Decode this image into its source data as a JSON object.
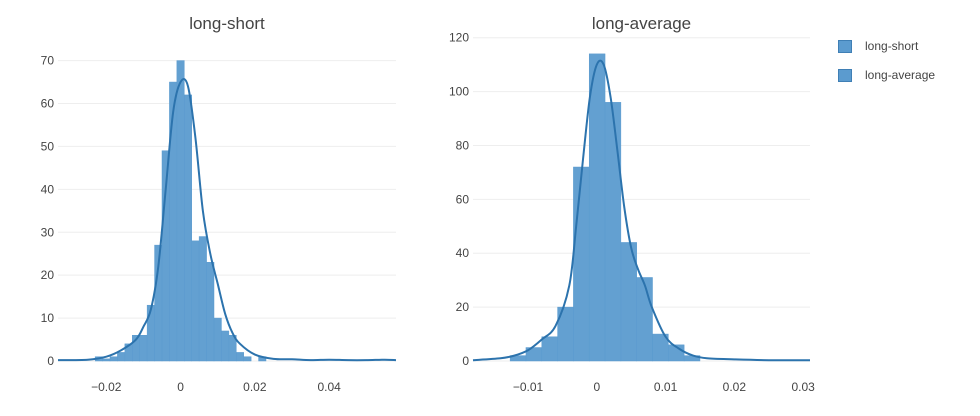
{
  "colors": {
    "bar": "#5b9bcf",
    "bar_edge": "#3f7fb5",
    "kde": "#2c73ad",
    "grid": "#eeeeee",
    "text": "#444444"
  },
  "legend": {
    "placement": "top-right",
    "items": [
      "long-short",
      "long-average"
    ]
  },
  "chart_data": [
    {
      "type": "bar",
      "title": "long-short",
      "xlim": [
        -0.033,
        0.058
      ],
      "ylim": [
        0,
        72
      ],
      "xticks": [
        -0.02,
        0,
        0.02,
        0.04
      ],
      "xtick_labels": [
        "−0.02",
        "0",
        "0.02",
        "0.04"
      ],
      "yticks": [
        0,
        10,
        20,
        30,
        40,
        50,
        60,
        70
      ],
      "ytick_labels": [
        "0",
        "10",
        "20",
        "30",
        "40",
        "50",
        "60",
        "70"
      ],
      "grid": "horizontal",
      "bin_width": 0.002,
      "bins": [
        {
          "x0": -0.023,
          "y": 1
        },
        {
          "x0": -0.021,
          "y": 0.5
        },
        {
          "x0": -0.019,
          "y": 1
        },
        {
          "x0": -0.017,
          "y": 2
        },
        {
          "x0": -0.015,
          "y": 4
        },
        {
          "x0": -0.013,
          "y": 6
        },
        {
          "x0": -0.011,
          "y": 6
        },
        {
          "x0": -0.009,
          "y": 13
        },
        {
          "x0": -0.007,
          "y": 27
        },
        {
          "x0": -0.005,
          "y": 49
        },
        {
          "x0": -0.003,
          "y": 65
        },
        {
          "x0": -0.001,
          "y": 70
        },
        {
          "x0": 0.001,
          "y": 62
        },
        {
          "x0": 0.003,
          "y": 28
        },
        {
          "x0": 0.005,
          "y": 29
        },
        {
          "x0": 0.007,
          "y": 23
        },
        {
          "x0": 0.009,
          "y": 10
        },
        {
          "x0": 0.011,
          "y": 7
        },
        {
          "x0": 0.013,
          "y": 6
        },
        {
          "x0": 0.015,
          "y": 2
        },
        {
          "x0": 0.017,
          "y": 1
        },
        {
          "x0": 0.021,
          "y": 1
        }
      ],
      "kde": {
        "x": [
          -0.033,
          -0.025,
          -0.02,
          -0.016,
          -0.012,
          -0.01,
          -0.008,
          -0.006,
          -0.004,
          -0.002,
          0,
          0.002,
          0.004,
          0.006,
          0.008,
          0.01,
          0.012,
          0.014,
          0.016,
          0.02,
          0.025,
          0.03,
          0.035,
          0.04,
          0.045,
          0.05,
          0.055,
          0.058
        ],
        "y": [
          0.2,
          0.3,
          1,
          2.5,
          5,
          8,
          12,
          22,
          40,
          58,
          65,
          64,
          52,
          35,
          25,
          18,
          11,
          6.5,
          4,
          1.5,
          0.5,
          0.4,
          0.2,
          0.3,
          0.2,
          0.2,
          0.3,
          0.2
        ]
      }
    },
    {
      "type": "bar",
      "title": "long-average",
      "xlim": [
        -0.018,
        0.031
      ],
      "ylim": [
        0,
        121
      ],
      "xticks": [
        -0.01,
        0,
        0.01,
        0.02,
        0.03
      ],
      "xtick_labels": [
        "−0.01",
        "0",
        "0.01",
        "0.02",
        "0.03"
      ],
      "yticks": [
        0,
        20,
        40,
        60,
        80,
        100,
        120
      ],
      "ytick_labels": [
        "0",
        "20",
        "40",
        "60",
        "80",
        "100",
        "120"
      ],
      "grid": "horizontal",
      "bin_width": 0.0023,
      "bins": [
        {
          "x0": -0.0126,
          "y": 2
        },
        {
          "x0": -0.0103,
          "y": 5
        },
        {
          "x0": -0.008,
          "y": 9
        },
        {
          "x0": -0.0057,
          "y": 20
        },
        {
          "x0": -0.0034,
          "y": 72
        },
        {
          "x0": -0.0011,
          "y": 114
        },
        {
          "x0": 0.0012,
          "y": 96
        },
        {
          "x0": 0.0035,
          "y": 44
        },
        {
          "x0": 0.0058,
          "y": 31
        },
        {
          "x0": 0.0081,
          "y": 10
        },
        {
          "x0": 0.0104,
          "y": 6
        },
        {
          "x0": 0.0127,
          "y": 2
        }
      ],
      "kde": {
        "x": [
          -0.018,
          -0.014,
          -0.012,
          -0.01,
          -0.008,
          -0.006,
          -0.004,
          -0.003,
          -0.002,
          -0.001,
          0,
          0.001,
          0.002,
          0.003,
          0.004,
          0.005,
          0.006,
          0.007,
          0.008,
          0.01,
          0.012,
          0.014,
          0.016,
          0.02,
          0.025,
          0.031
        ],
        "y": [
          0.3,
          1,
          2,
          4,
          8,
          13,
          28,
          50,
          75,
          98,
          110,
          110,
          98,
          78,
          57,
          42,
          34,
          28,
          20,
          9,
          4.5,
          2,
          1,
          0.6,
          0.3,
          0.3
        ]
      }
    }
  ]
}
